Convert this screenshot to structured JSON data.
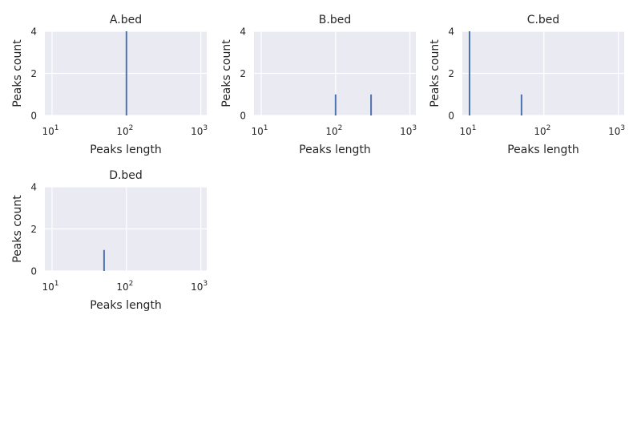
{
  "figure": {
    "background": "#ffffff",
    "axes_face_color": "#eaeaf2",
    "grid_color": "#ffffff",
    "bar_color": "#4c72b0"
  },
  "chart_data": [
    {
      "type": "bar",
      "title": "A.bed",
      "xlabel": "Peaks length",
      "ylabel": "Peaks count",
      "xscale": "log",
      "xlim": [
        8,
        1200
      ],
      "ylim": [
        0,
        4
      ],
      "x_ticks": [
        10,
        100,
        1000
      ],
      "x_tick_labels": [
        {
          "base": "10",
          "exp": "1"
        },
        {
          "base": "10",
          "exp": "2"
        },
        {
          "base": "10",
          "exp": "3"
        }
      ],
      "y_ticks": [
        0,
        2,
        4
      ],
      "y_tick_labels": [
        "0",
        "2",
        "4"
      ],
      "grid": true,
      "bars": [
        {
          "x": 100,
          "count": 4
        }
      ]
    },
    {
      "type": "bar",
      "title": "B.bed",
      "xlabel": "Peaks length",
      "ylabel": "Peaks count",
      "xscale": "log",
      "xlim": [
        8,
        1200
      ],
      "ylim": [
        0,
        4
      ],
      "x_ticks": [
        10,
        100,
        1000
      ],
      "x_tick_labels": [
        {
          "base": "10",
          "exp": "1"
        },
        {
          "base": "10",
          "exp": "2"
        },
        {
          "base": "10",
          "exp": "3"
        }
      ],
      "y_ticks": [
        0,
        2,
        4
      ],
      "y_tick_labels": [
        "0",
        "2",
        "4"
      ],
      "grid": true,
      "bars": [
        {
          "x": 100,
          "count": 1
        },
        {
          "x": 300,
          "count": 1
        }
      ]
    },
    {
      "type": "bar",
      "title": "C.bed",
      "xlabel": "Peaks length",
      "ylabel": "Peaks count",
      "xscale": "log",
      "xlim": [
        8,
        1200
      ],
      "ylim": [
        0,
        4
      ],
      "x_ticks": [
        10,
        100,
        1000
      ],
      "x_tick_labels": [
        {
          "base": "10",
          "exp": "1"
        },
        {
          "base": "10",
          "exp": "2"
        },
        {
          "base": "10",
          "exp": "3"
        }
      ],
      "y_ticks": [
        0,
        2,
        4
      ],
      "y_tick_labels": [
        "0",
        "2",
        "4"
      ],
      "grid": true,
      "bars": [
        {
          "x": 10,
          "count": 4
        },
        {
          "x": 50,
          "count": 1
        }
      ]
    },
    {
      "type": "bar",
      "title": "D.bed",
      "xlabel": "Peaks length",
      "ylabel": "Peaks count",
      "xscale": "log",
      "xlim": [
        8,
        1200
      ],
      "ylim": [
        0,
        4
      ],
      "x_ticks": [
        10,
        100,
        1000
      ],
      "x_tick_labels": [
        {
          "base": "10",
          "exp": "1"
        },
        {
          "base": "10",
          "exp": "2"
        },
        {
          "base": "10",
          "exp": "3"
        }
      ],
      "y_ticks": [
        0,
        2,
        4
      ],
      "y_tick_labels": [
        "0",
        "2",
        "4"
      ],
      "grid": true,
      "bars": [
        {
          "x": 50,
          "count": 1
        }
      ]
    }
  ]
}
